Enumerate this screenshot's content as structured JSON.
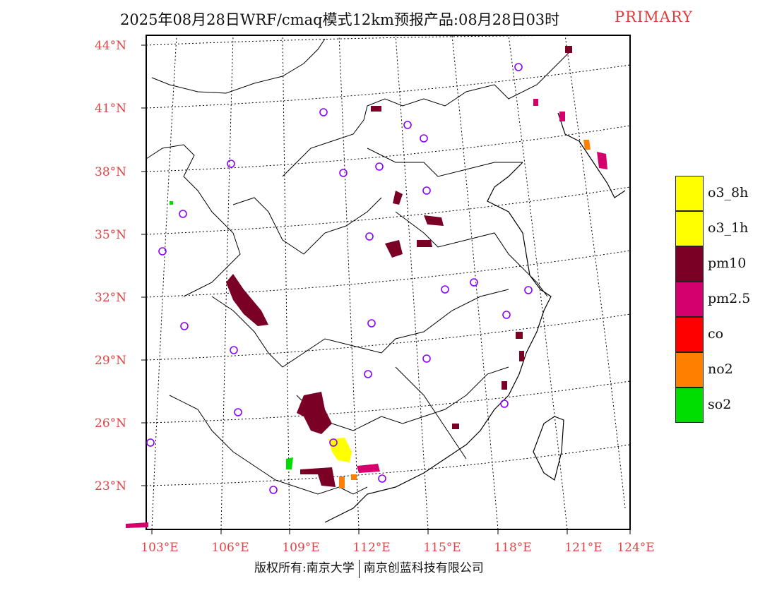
{
  "header": {
    "title": "2025年08月28日WRF/cmaq模式12km预报产品:08月28日03时",
    "tag": "PRIMARY"
  },
  "axes": {
    "lat_labels": [
      "44°N",
      "41°N",
      "38°N",
      "35°N",
      "32°N",
      "29°N",
      "26°N",
      "23°N"
    ],
    "lon_labels": [
      "103°E",
      "106°E",
      "109°E",
      "112°E",
      "115°E",
      "118°E",
      "121°E",
      "124°E"
    ]
  },
  "legend": {
    "items": [
      {
        "label": "o3_8h",
        "color": "#ffff00"
      },
      {
        "label": "o3_1h",
        "color": "#ffff00"
      },
      {
        "label": "pm10",
        "color": "#7a0026"
      },
      {
        "label": "pm2.5",
        "color": "#d4006e"
      },
      {
        "label": "co",
        "color": "#ff0000"
      },
      {
        "label": "no2",
        "color": "#ff7f00"
      },
      {
        "label": "so2",
        "color": "#00dd00"
      }
    ]
  },
  "footer": {
    "left": "版权所有:南京大学",
    "right": "南京创蓝科技有限公司"
  }
}
